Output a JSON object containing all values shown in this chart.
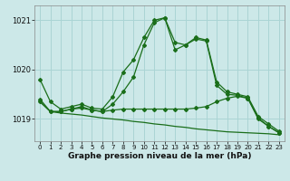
{
  "xlabel": "Graphe pression niveau de la mer (hPa)",
  "bg_color": "#cce8e8",
  "grid_color": "#aad4d4",
  "line_color": "#1a6e1a",
  "hours": [
    0,
    1,
    2,
    3,
    4,
    5,
    6,
    7,
    8,
    9,
    10,
    11,
    12,
    13,
    14,
    15,
    16,
    17,
    18,
    19,
    20,
    21,
    22,
    23
  ],
  "y_main": [
    1019.8,
    1019.35,
    1019.2,
    1019.25,
    1019.3,
    1019.22,
    1019.2,
    1019.45,
    1019.95,
    1020.2,
    1020.65,
    1021.0,
    1021.05,
    1020.55,
    1020.5,
    1020.65,
    1020.6,
    1019.75,
    1019.55,
    1019.5,
    1019.45,
    1019.05,
    1018.9,
    1018.75
  ],
  "y_line2": [
    1019.4,
    1019.15,
    1019.15,
    1019.2,
    1019.25,
    1019.18,
    1019.15,
    1019.3,
    1019.55,
    1019.85,
    1020.5,
    1020.95,
    1021.05,
    1020.4,
    1020.5,
    1020.62,
    1020.58,
    1019.68,
    1019.5,
    1019.48,
    1019.42,
    1019.0,
    1018.85,
    1018.72
  ],
  "y_flat1": [
    1019.35,
    1019.15,
    1019.15,
    1019.2,
    1019.22,
    1019.18,
    1019.15,
    1019.18,
    1019.2,
    1019.2,
    1019.2,
    1019.2,
    1019.2,
    1019.2,
    1019.2,
    1019.22,
    1019.25,
    1019.35,
    1019.42,
    1019.46,
    1019.42,
    1019.02,
    1018.85,
    1018.72
  ],
  "y_flat2": [
    1019.35,
    1019.15,
    1019.12,
    1019.1,
    1019.08,
    1019.05,
    1019.02,
    1019.0,
    1018.98,
    1018.95,
    1018.93,
    1018.9,
    1018.88,
    1018.85,
    1018.83,
    1018.8,
    1018.78,
    1018.76,
    1018.74,
    1018.73,
    1018.72,
    1018.71,
    1018.7,
    1018.68
  ],
  "ylim": [
    1018.55,
    1021.3
  ],
  "yticks": [
    1019.0,
    1020.0,
    1021.0
  ],
  "xlim": [
    -0.5,
    23.5
  ]
}
